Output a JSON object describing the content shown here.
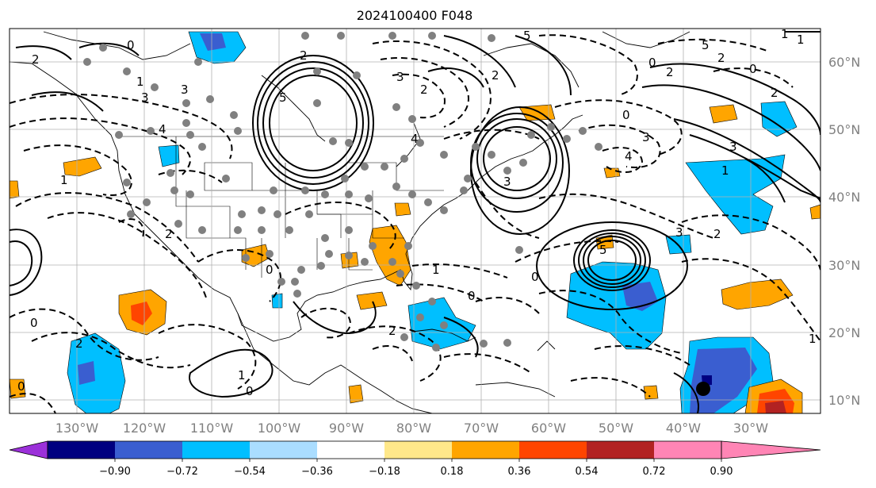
{
  "title": "2024100400 F048",
  "map": {
    "lat_labels": [
      "60°N",
      "50°N",
      "40°N",
      "30°N",
      "20°N",
      "10°N"
    ],
    "lon_labels": [
      "130°W",
      "120°W",
      "110°W",
      "100°W",
      "90°W",
      "80°W",
      "70°W",
      "60°W",
      "50°W",
      "40°W",
      "30°W"
    ],
    "contour_labels": [
      "0",
      "0",
      "2",
      "1",
      "3",
      "3",
      "4",
      "5",
      "2",
      "1",
      "4",
      "3",
      "2",
      "0",
      "5",
      "2",
      "1",
      "0",
      "4",
      "3",
      "2",
      "5",
      "2",
      "3",
      "1",
      "2",
      "2",
      "2",
      "1",
      "0",
      "1",
      "5",
      "3",
      "0",
      "0",
      "0",
      "2",
      "1",
      "0",
      "2",
      "1",
      "3",
      "0"
    ]
  },
  "colorbar": {
    "labels": [
      "−0.90",
      "−0.72",
      "−0.54",
      "−0.36",
      "−0.18",
      "0.18",
      "0.36",
      "0.54",
      "0.72",
      "0.90"
    ],
    "colors": [
      "#9b30d9",
      "#000080",
      "#3a5ed0",
      "#00bfff",
      "#aaddff",
      "#ffffff",
      "#ffe88a",
      "#ffa500",
      "#ff4500",
      "#b22222",
      "#ff85b5"
    ]
  }
}
